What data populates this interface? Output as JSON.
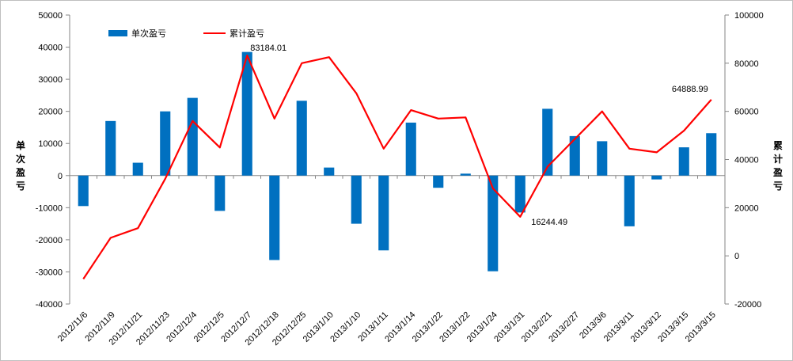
{
  "chart_data": {
    "type": "bar",
    "categories": [
      "2012/11/6",
      "2012/11/9",
      "2012/11/21",
      "2012/11/23",
      "2012/12/4",
      "2012/12/5",
      "2012/12/7",
      "2012/12/18",
      "2012/12/25",
      "2013/1/10",
      "2013/1/10",
      "2013/1/11",
      "2013/1/14",
      "2013/1/22",
      "2013/1/22",
      "2013/1/24",
      "2013/1/31",
      "2013/2/21",
      "2013/2/27",
      "2013/3/6",
      "2013/3/11",
      "2013/3/12",
      "2013/3/15",
      "2013/3/15"
    ],
    "series": [
      {
        "name": "单次盈亏",
        "type": "bar",
        "axis": "left",
        "color": "#0070c0",
        "values": [
          -9500,
          17000,
          4000,
          20000,
          24200,
          -11000,
          38500,
          -26300,
          23300,
          2500,
          -15000,
          -23300,
          16500,
          -3800,
          600,
          -29800,
          -11500,
          20800,
          12300,
          10700,
          -15800,
          -1200,
          8800,
          13200
        ]
      },
      {
        "name": "累计盈亏",
        "type": "line",
        "axis": "right",
        "color": "#ff0000",
        "values": [
          -9600,
          7500,
          11500,
          32000,
          56000,
          45000,
          83184.01,
          57000,
          80000,
          82500,
          67500,
          44500,
          60500,
          57000,
          57500,
          28000,
          16244.49,
          37000,
          48500,
          60000,
          44500,
          43000,
          52000,
          64888.99
        ]
      }
    ],
    "annotations": [
      {
        "index": 6,
        "text": "83184.01"
      },
      {
        "index": 16,
        "text": "16244.49"
      },
      {
        "index": 23,
        "text": "64888.99"
      }
    ],
    "ylabel": "单次盈亏",
    "y2label": "累计盈亏",
    "ylim": [
      -40000,
      50000
    ],
    "y2lim": [
      -20000,
      100000
    ],
    "yticks": [
      "50000",
      "40000",
      "30000",
      "20000",
      "10000",
      "0",
      "-10000",
      "-20000",
      "-30000",
      "-40000"
    ],
    "y2ticks": [
      "100000",
      "80000",
      "60000",
      "40000",
      "20000",
      "0",
      "-20000"
    ],
    "grid": false,
    "legend": "top-left"
  }
}
